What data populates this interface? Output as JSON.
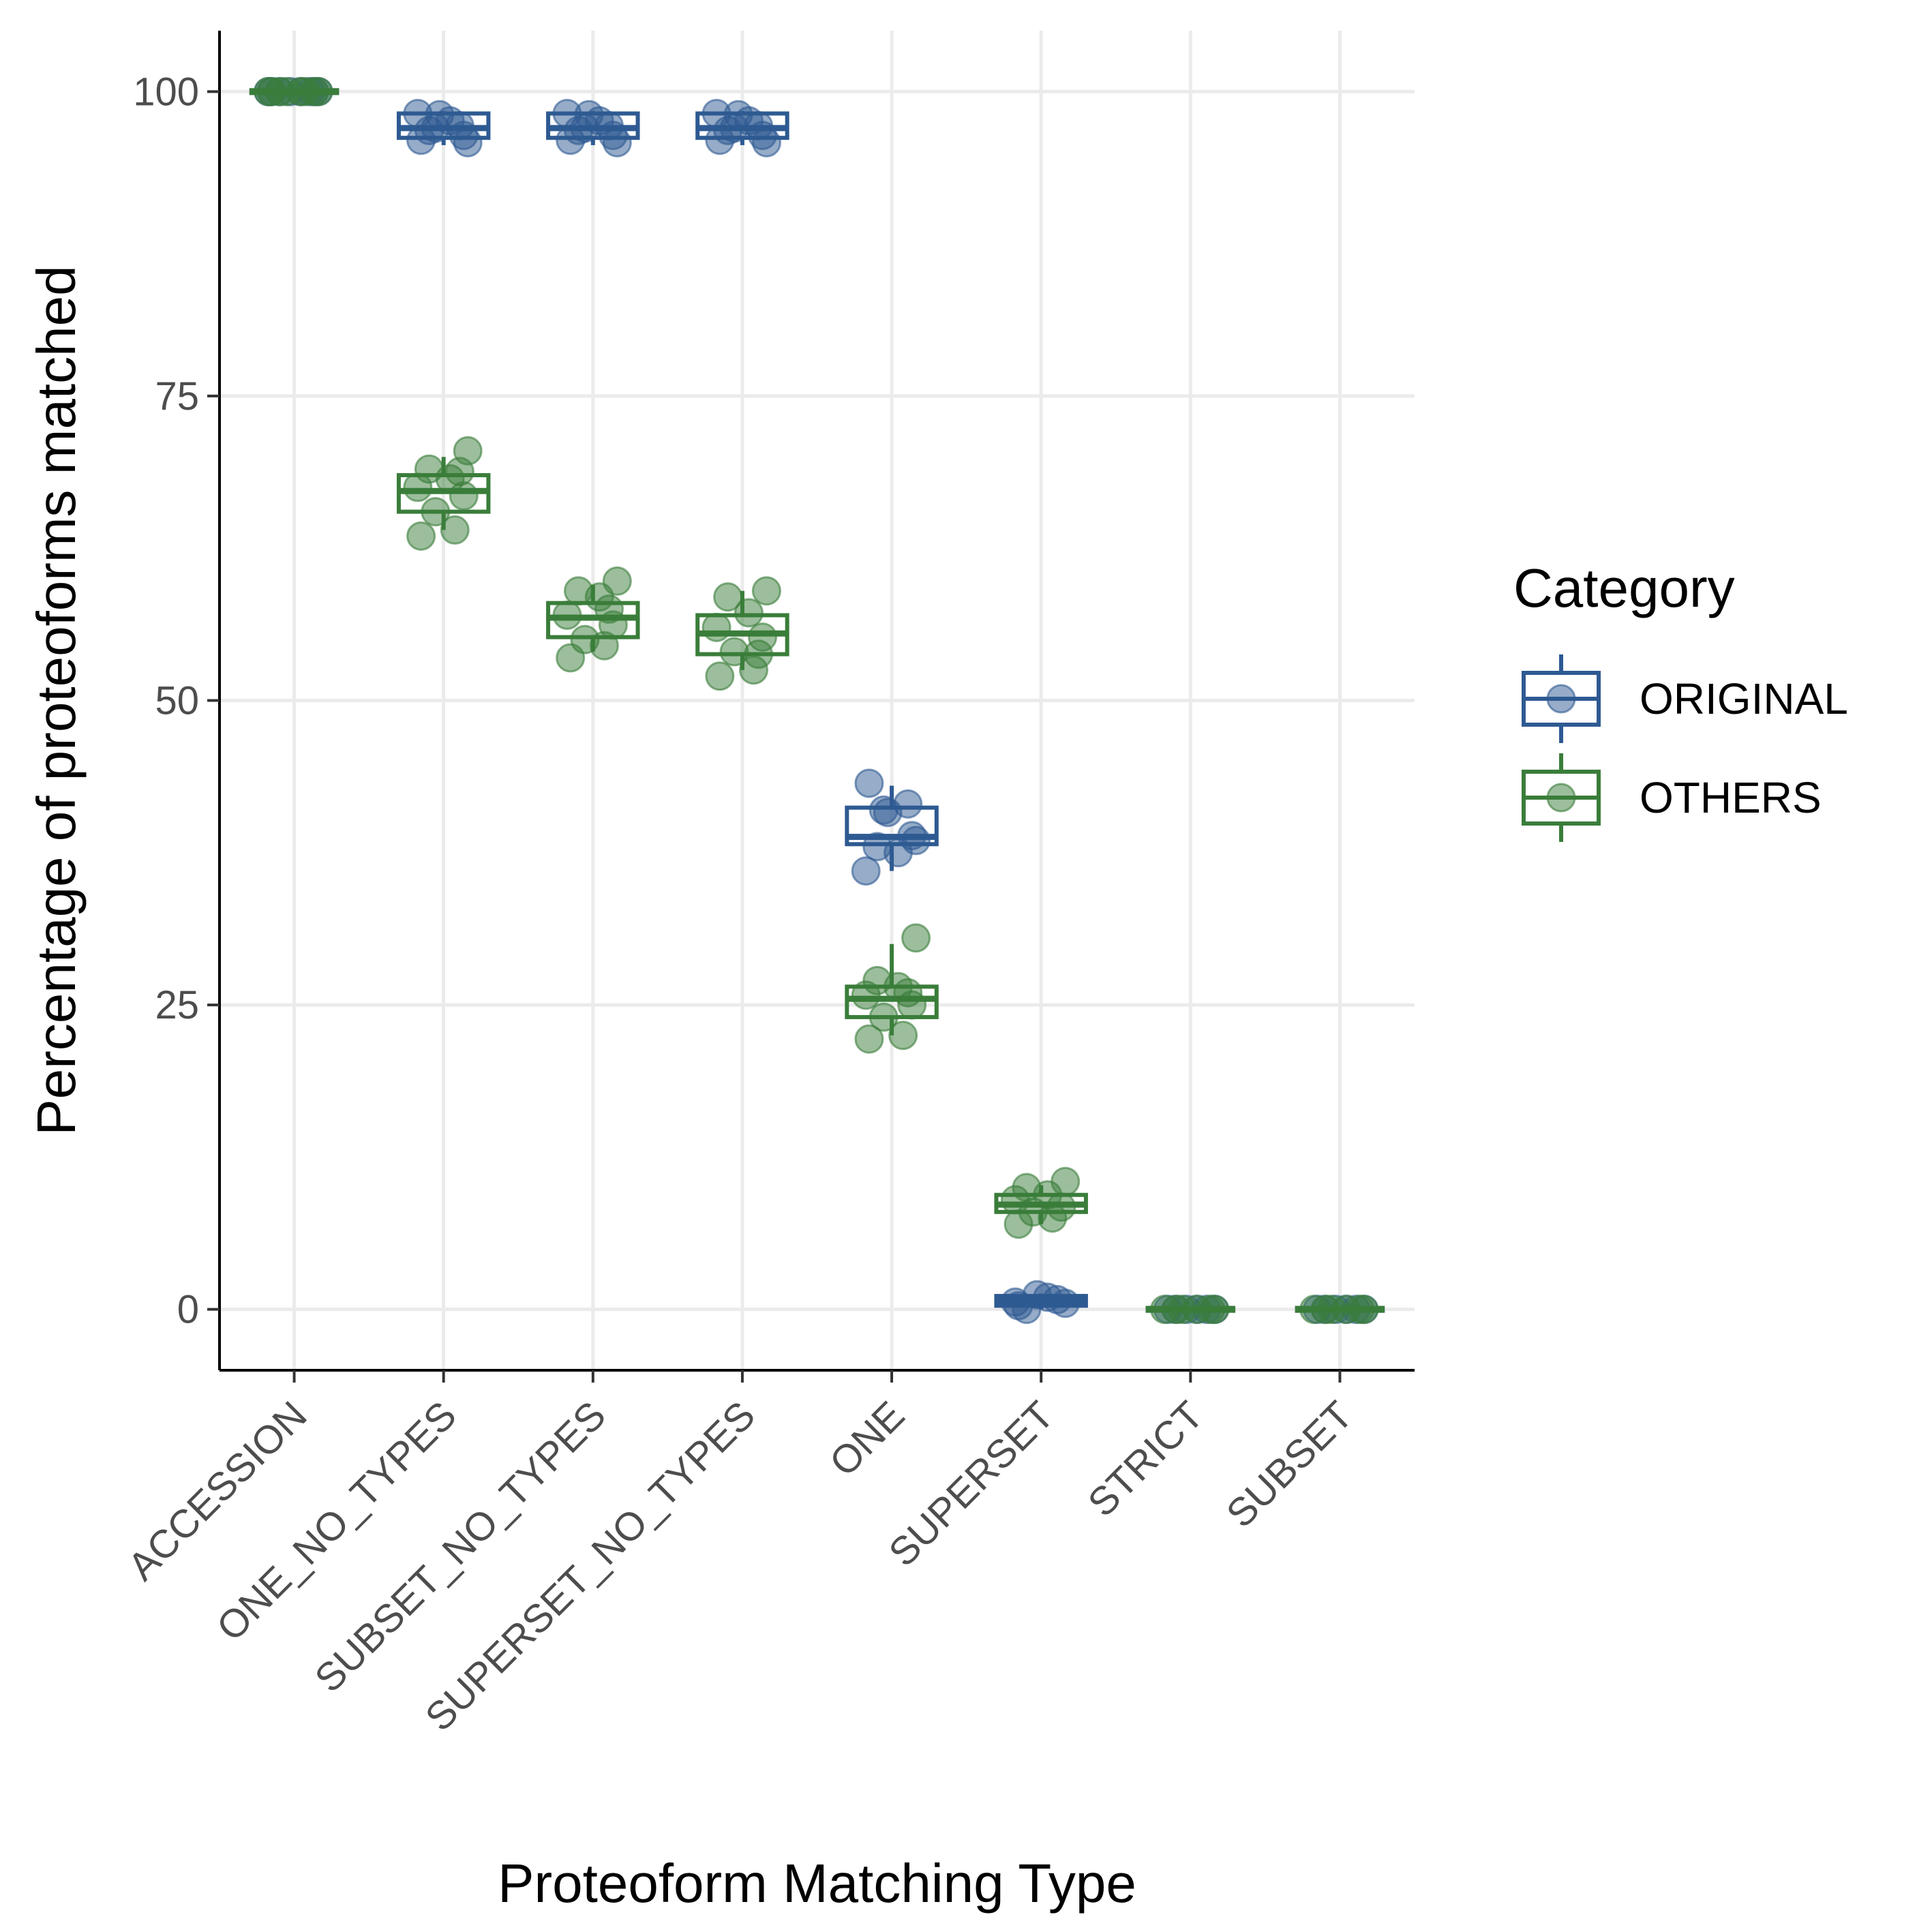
{
  "chart_data": {
    "type": "box",
    "title": "",
    "xlabel": "Proteoform Matching Type",
    "ylabel": "Percentage of proteoforms matched",
    "ylim": [
      -5,
      105
    ],
    "yticks": [
      0,
      25,
      50,
      75,
      100
    ],
    "grid": true,
    "legend_position": "right",
    "legend_title": "Category",
    "categories": [
      "ACCESSION",
      "ONE_NO_TYPES",
      "SUBSET_NO_TYPES",
      "SUPERSET_NO_TYPES",
      "ONE",
      "SUPERSET",
      "STRICT",
      "SUBSET"
    ],
    "series": [
      {
        "name": "ORIGINAL",
        "color": "#2e5a92",
        "boxes": [
          {
            "q1": 100,
            "median": 100,
            "q3": 100,
            "low": 100,
            "high": 100,
            "points": [
              100,
              100,
              100,
              100,
              100,
              100,
              100,
              100
            ]
          },
          {
            "q1": 96.2,
            "median": 97.0,
            "q3": 98.2,
            "low": 95.6,
            "high": 98.4,
            "points": [
              96.0,
              97.2,
              98.1,
              95.8,
              96.8,
              97.6,
              98.2,
              96.4,
              97.0
            ]
          },
          {
            "q1": 96.2,
            "median": 97.0,
            "q3": 98.2,
            "low": 95.6,
            "high": 98.4,
            "points": [
              96.0,
              97.2,
              98.1,
              95.8,
              96.8,
              97.6,
              98.2,
              96.4,
              97.0
            ]
          },
          {
            "q1": 96.2,
            "median": 97.0,
            "q3": 98.2,
            "low": 95.6,
            "high": 98.4,
            "points": [
              96.0,
              97.2,
              98.1,
              95.8,
              96.8,
              97.6,
              98.2,
              96.4,
              97.0
            ]
          },
          {
            "q1": 38.2,
            "median": 38.8,
            "q3": 41.2,
            "low": 36.0,
            "high": 43.0,
            "points": [
              43.2,
              41.5,
              40.8,
              38.5,
              38.0,
              37.5,
              36.0,
              38.9,
              41.0
            ]
          },
          {
            "q1": 0.3,
            "median": 0.7,
            "q3": 1.1,
            "low": 0.0,
            "high": 1.3,
            "points": [
              0.3,
              0.8,
              1.2,
              0.5,
              0.0,
              1.0,
              0.6
            ]
          },
          {
            "q1": 0,
            "median": 0,
            "q3": 0,
            "low": 0,
            "high": 0,
            "points": [
              0,
              0,
              0,
              0,
              0,
              0
            ]
          },
          {
            "q1": 0,
            "median": 0,
            "q3": 0,
            "low": 0,
            "high": 0,
            "points": [
              0,
              0,
              0,
              0,
              0,
              0
            ]
          }
        ]
      },
      {
        "name": "OTHERS",
        "color": "#3a7d3a",
        "boxes": [
          {
            "q1": 100,
            "median": 100,
            "q3": 100,
            "low": 100,
            "high": 100,
            "points": [
              100,
              100,
              100,
              100,
              100,
              100,
              100,
              100
            ]
          },
          {
            "q1": 65.5,
            "median": 67.2,
            "q3": 68.5,
            "low": 64.0,
            "high": 70.0,
            "points": [
              70.5,
              69.0,
              68.2,
              67.5,
              66.8,
              65.5,
              64.0,
              63.5,
              68.8
            ]
          },
          {
            "q1": 55.2,
            "median": 56.8,
            "q3": 58.0,
            "low": 54.0,
            "high": 59.5,
            "points": [
              59.8,
              59.0,
              58.5,
              57.0,
              56.2,
              55.0,
              54.5,
              53.5,
              57.5
            ]
          },
          {
            "q1": 53.8,
            "median": 55.5,
            "q3": 57.0,
            "low": 52.5,
            "high": 59.0,
            "points": [
              59.0,
              58.5,
              57.2,
              56.0,
              55.2,
              54.0,
              52.5,
              52.0,
              53.8
            ]
          },
          {
            "q1": 24.0,
            "median": 25.5,
            "q3": 26.5,
            "low": 22.5,
            "high": 30.0,
            "points": [
              30.5,
              27.0,
              26.5,
              25.8,
              25.0,
              24.0,
              22.5,
              22.2,
              26.0
            ]
          },
          {
            "q1": 8.0,
            "median": 8.6,
            "q3": 9.4,
            "low": 7.0,
            "high": 10.2,
            "points": [
              10.5,
              10.0,
              9.4,
              9.0,
              8.4,
              8.0,
              7.5,
              7.0
            ]
          },
          {
            "q1": 0,
            "median": 0,
            "q3": 0,
            "low": 0,
            "high": 0,
            "points": [
              0,
              0,
              0,
              0,
              0,
              0
            ]
          },
          {
            "q1": 0,
            "median": 0,
            "q3": 0,
            "low": 0,
            "high": 0,
            "points": [
              0,
              0,
              0,
              0,
              0,
              0
            ]
          }
        ]
      }
    ]
  }
}
